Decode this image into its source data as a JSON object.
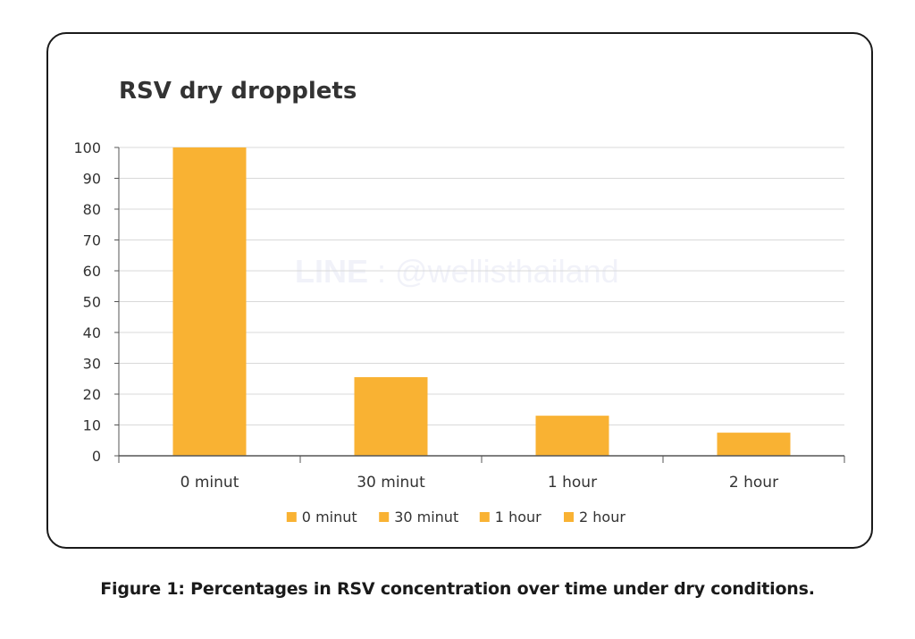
{
  "caption": "Figure 1: Percentages in RSV concentration over time under dry conditions.",
  "watermark": {
    "brand": "LINE",
    "separator": " : ",
    "handle": "@wellisthailand"
  },
  "colors": {
    "bar": "#F9B233",
    "gridline": "#d9d9d9",
    "axis": "#555555",
    "text": "#333333"
  },
  "chart_data": {
    "type": "bar",
    "title": "RSV dry dropplets",
    "categories": [
      "0 minut",
      "30 minut",
      "1 hour",
      "2 hour"
    ],
    "values": [
      100,
      25.5,
      13,
      7.5
    ],
    "xlabel": "",
    "ylabel": "",
    "ylim": [
      0,
      100
    ],
    "yticks": [
      0,
      10,
      20,
      30,
      40,
      50,
      60,
      70,
      80,
      90,
      100
    ],
    "grid": true,
    "legend": {
      "position": "bottom",
      "entries": [
        "0 minut",
        "30 minut",
        "1 hour",
        "2 hour"
      ]
    }
  }
}
